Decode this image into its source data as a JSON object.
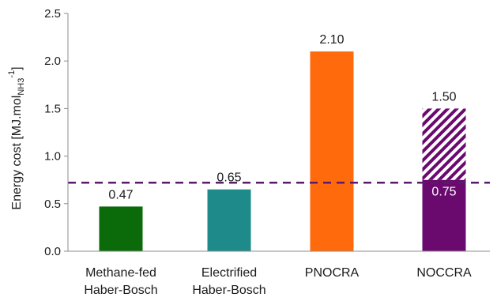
{
  "chart_data": {
    "type": "bar",
    "categories": [
      [
        "Methane-fed",
        "Haber-Bosch"
      ],
      [
        "Electrified",
        "Haber-Bosch"
      ],
      [
        "PNOCRA"
      ],
      [
        "NOCCRA"
      ]
    ],
    "values": [
      0.47,
      0.65,
      2.1,
      1.5
    ],
    "value_labels": [
      "0.47",
      "0.65",
      "2.10",
      "1.50"
    ],
    "segment": {
      "category_index": 3,
      "value": 0.75,
      "label": "0.75",
      "upper_pattern": "hatched"
    },
    "reference_line": {
      "value": 0.72,
      "style": "dashed",
      "color": "#5b1a6b"
    },
    "colors": [
      "#0b6b0b",
      "#1f8a8a",
      "#ff6a0d",
      "#6a0a6e"
    ],
    "ylabel": {
      "main": "Energy cost [MJ.mol",
      "sub": "NH3",
      "sup": "-1",
      "end": "]"
    },
    "ylim": [
      0,
      2.5
    ],
    "yticks": [
      "0.0",
      "0.5",
      "1.0",
      "1.5",
      "2.0",
      "2.5"
    ],
    "grid": false,
    "legend": "none"
  }
}
